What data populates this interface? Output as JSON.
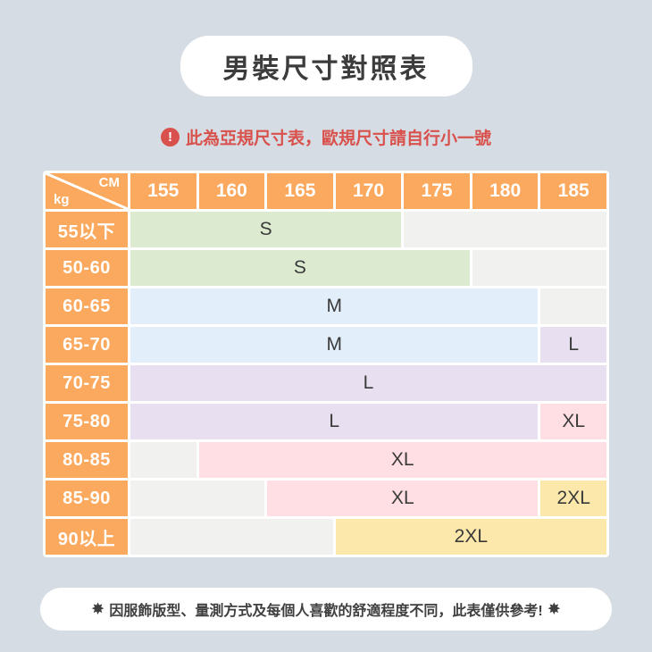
{
  "title": "男裝尺寸對照表",
  "warning": {
    "icon_glyph": "!",
    "text": "此為亞規尺寸表，歐規尺寸請自行小一號"
  },
  "table": {
    "corner_top_label": "CM",
    "corner_bottom_label": "kg",
    "columns": [
      "155",
      "160",
      "165",
      "170",
      "175",
      "180",
      "185"
    ],
    "rows": [
      {
        "label": "55以下",
        "bands": [
          {
            "size": "S",
            "color": "green",
            "span": 4
          },
          {
            "size": "",
            "color": "empty",
            "span": 3
          }
        ]
      },
      {
        "label": "50-60",
        "bands": [
          {
            "size": "S",
            "color": "green",
            "span": 5
          },
          {
            "size": "",
            "color": "empty",
            "span": 2
          }
        ]
      },
      {
        "label": "60-65",
        "bands": [
          {
            "size": "M",
            "color": "blue",
            "span": 6
          },
          {
            "size": "",
            "color": "empty",
            "span": 1
          }
        ]
      },
      {
        "label": "65-70",
        "bands": [
          {
            "size": "M",
            "color": "blue",
            "span": 6
          },
          {
            "size": "L",
            "color": "purple",
            "span": 1
          }
        ]
      },
      {
        "label": "70-75",
        "bands": [
          {
            "size": "L",
            "color": "purple",
            "span": 7
          }
        ]
      },
      {
        "label": "75-80",
        "bands": [
          {
            "size": "L",
            "color": "purple",
            "span": 6
          },
          {
            "size": "XL",
            "color": "pink",
            "span": 1
          }
        ]
      },
      {
        "label": "80-85",
        "bands": [
          {
            "size": "",
            "color": "empty",
            "span": 1
          },
          {
            "size": "XL",
            "color": "pink",
            "span": 6
          }
        ]
      },
      {
        "label": "85-90",
        "bands": [
          {
            "size": "",
            "color": "empty",
            "span": 2
          },
          {
            "size": "XL",
            "color": "pink",
            "span": 4
          },
          {
            "size": "2XL",
            "color": "yellow",
            "span": 1
          }
        ]
      },
      {
        "label": "90以上",
        "bands": [
          {
            "size": "",
            "color": "empty",
            "span": 3
          },
          {
            "size": "2XL",
            "color": "yellow",
            "span": 4
          }
        ]
      }
    ]
  },
  "footer": {
    "star": "✸",
    "text": "因服飾版型、量測方式及每個人喜歡的舒適程度不同，此表僅供參考!"
  },
  "colors": {
    "background": "#d6dce3",
    "header_orange": "#fba95e",
    "warning_red": "#d9514c",
    "title_text": "#3c3c3c",
    "size_s_green": "#dcead0",
    "size_m_blue": "#e3eefb",
    "size_l_purple": "#e8e0f1",
    "size_xl_pink": "#ffdfe3",
    "size_2xl_yellow": "#fce8ab",
    "empty_gray": "#f1f1ef"
  },
  "chart_data": {
    "type": "table",
    "title": "男裝尺寸對照表",
    "note_top": "此為亞規尺寸表，歐規尺寸請自行小一號",
    "note_bottom": "因服飾版型、量測方式及每個人喜歡的舒適程度不同，此表僅供參考!",
    "x_axis_label": "CM",
    "y_axis_label": "kg",
    "columns_cm": [
      155,
      160,
      165,
      170,
      175,
      180,
      185
    ],
    "rows_kg": [
      "55以下",
      "50-60",
      "60-65",
      "65-70",
      "70-75",
      "75-80",
      "80-85",
      "85-90",
      "90以上"
    ],
    "cells": [
      [
        "S",
        "S",
        "S",
        "S",
        "",
        "",
        ""
      ],
      [
        "S",
        "S",
        "S",
        "S",
        "S",
        "",
        ""
      ],
      [
        "M",
        "M",
        "M",
        "M",
        "M",
        "M",
        ""
      ],
      [
        "M",
        "M",
        "M",
        "M",
        "M",
        "M",
        "L"
      ],
      [
        "L",
        "L",
        "L",
        "L",
        "L",
        "L",
        "L"
      ],
      [
        "L",
        "L",
        "L",
        "L",
        "L",
        "L",
        "XL"
      ],
      [
        "",
        "XL",
        "XL",
        "XL",
        "XL",
        "XL",
        "XL"
      ],
      [
        "",
        "",
        "XL",
        "XL",
        "XL",
        "XL",
        "2XL"
      ],
      [
        "",
        "",
        "",
        "2XL",
        "2XL",
        "2XL",
        "2XL"
      ]
    ],
    "size_color_legend": {
      "S": "green",
      "M": "blue",
      "L": "purple",
      "XL": "pink",
      "2XL": "yellow"
    }
  }
}
